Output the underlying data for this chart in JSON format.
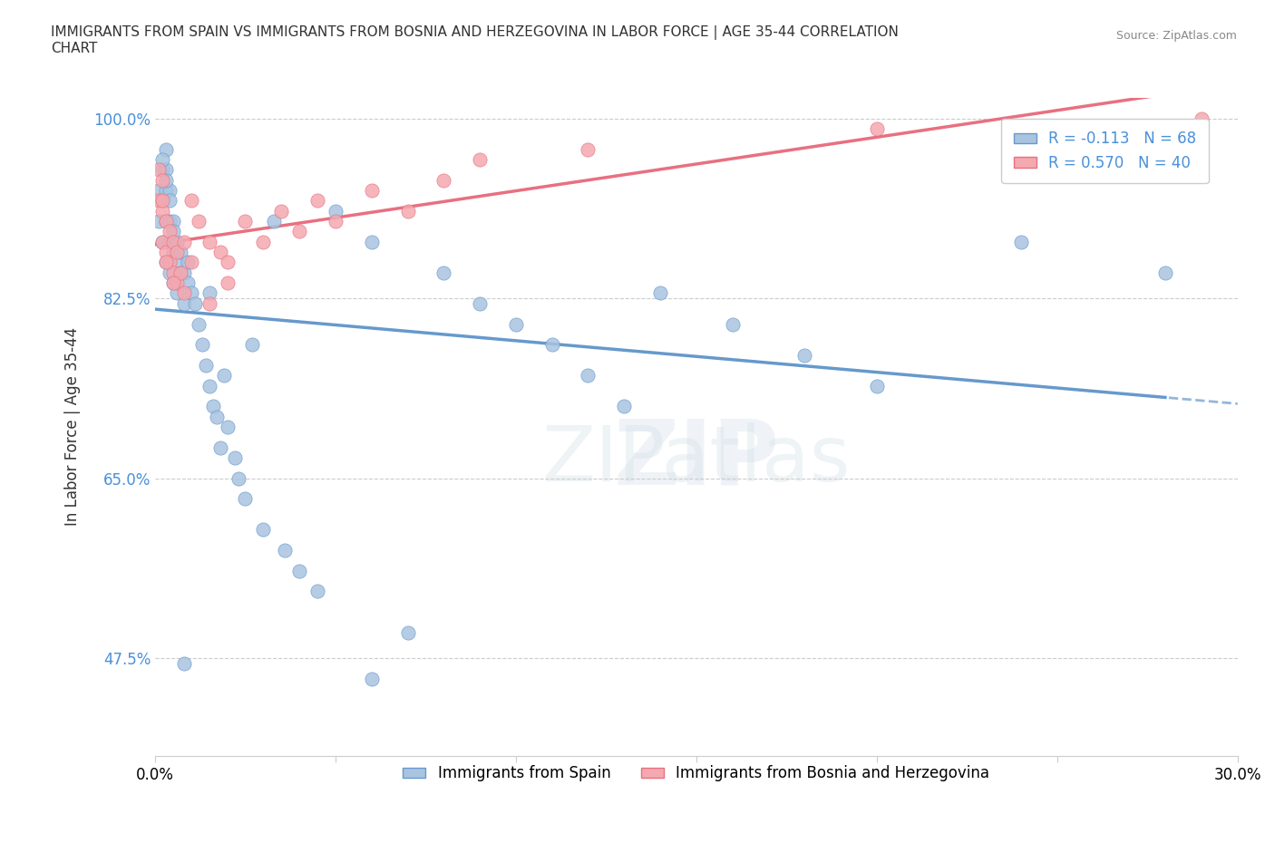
{
  "title": "IMMIGRANTS FROM SPAIN VS IMMIGRANTS FROM BOSNIA AND HERZEGOVINA IN LABOR FORCE | AGE 35-44 CORRELATION\nCHART",
  "source_text": "Source: ZipAtlas.com",
  "xlabel_bottom": "",
  "ylabel": "In Labor Force | Age 35-44",
  "xlim": [
    0.0,
    0.3
  ],
  "ylim": [
    0.38,
    1.02
  ],
  "xticks": [
    0.0,
    0.05,
    0.1,
    0.15,
    0.2,
    0.25,
    0.3
  ],
  "xticklabels": [
    "0.0%",
    "",
    "",
    "",
    "",
    "",
    "30.0%"
  ],
  "ytick_values": [
    1.0,
    0.825,
    0.65,
    0.475
  ],
  "ytick_labels": [
    "100.0%",
    "82.5%",
    "65.0%",
    "47.5%"
  ],
  "legend_label1": "Immigrants from Spain",
  "legend_label2": "Immigrants from Bosnia and Herzegovina",
  "r1": -0.113,
  "n1": 68,
  "r2": 0.57,
  "n2": 40,
  "color1": "#a8c4e0",
  "color2": "#f4a8b0",
  "trendline1_color": "#6699cc",
  "trendline2_color": "#e87080",
  "watermark": "ZIPatlas",
  "spain_x": [
    0.001,
    0.001,
    0.002,
    0.002,
    0.002,
    0.003,
    0.003,
    0.003,
    0.003,
    0.003,
    0.004,
    0.004,
    0.004,
    0.004,
    0.005,
    0.005,
    0.005,
    0.006,
    0.006,
    0.006,
    0.007,
    0.007,
    0.008,
    0.008,
    0.009,
    0.009,
    0.01,
    0.011,
    0.012,
    0.013,
    0.014,
    0.015,
    0.015,
    0.016,
    0.017,
    0.018,
    0.019,
    0.02,
    0.022,
    0.023,
    0.025,
    0.027,
    0.03,
    0.033,
    0.036,
    0.04,
    0.045,
    0.05,
    0.06,
    0.07,
    0.08,
    0.09,
    0.1,
    0.11,
    0.12,
    0.13,
    0.002,
    0.003,
    0.004,
    0.005,
    0.008,
    0.06,
    0.14,
    0.16,
    0.18,
    0.2,
    0.24,
    0.28
  ],
  "spain_y": [
    0.93,
    0.9,
    0.88,
    0.92,
    0.95,
    0.86,
    0.9,
    0.93,
    0.95,
    0.97,
    0.85,
    0.88,
    0.9,
    0.93,
    0.84,
    0.87,
    0.9,
    0.83,
    0.86,
    0.88,
    0.85,
    0.87,
    0.82,
    0.85,
    0.84,
    0.86,
    0.83,
    0.82,
    0.8,
    0.78,
    0.76,
    0.74,
    0.83,
    0.72,
    0.71,
    0.68,
    0.75,
    0.7,
    0.67,
    0.65,
    0.63,
    0.78,
    0.6,
    0.9,
    0.58,
    0.56,
    0.54,
    0.91,
    0.88,
    0.5,
    0.85,
    0.82,
    0.8,
    0.78,
    0.75,
    0.72,
    0.96,
    0.94,
    0.92,
    0.89,
    0.47,
    0.455,
    0.83,
    0.8,
    0.77,
    0.74,
    0.88,
    0.85
  ],
  "bosnia_x": [
    0.001,
    0.001,
    0.002,
    0.002,
    0.002,
    0.003,
    0.003,
    0.004,
    0.004,
    0.005,
    0.005,
    0.006,
    0.006,
    0.007,
    0.008,
    0.008,
    0.01,
    0.012,
    0.015,
    0.018,
    0.02,
    0.025,
    0.03,
    0.035,
    0.04,
    0.045,
    0.05,
    0.06,
    0.07,
    0.08,
    0.002,
    0.003,
    0.005,
    0.01,
    0.015,
    0.02,
    0.09,
    0.12,
    0.2,
    0.29
  ],
  "bosnia_y": [
    0.92,
    0.95,
    0.88,
    0.91,
    0.94,
    0.87,
    0.9,
    0.86,
    0.89,
    0.85,
    0.88,
    0.84,
    0.87,
    0.85,
    0.88,
    0.83,
    0.86,
    0.9,
    0.88,
    0.87,
    0.86,
    0.9,
    0.88,
    0.91,
    0.89,
    0.92,
    0.9,
    0.93,
    0.91,
    0.94,
    0.92,
    0.86,
    0.84,
    0.92,
    0.82,
    0.84,
    0.96,
    0.97,
    0.99,
    1.0
  ]
}
